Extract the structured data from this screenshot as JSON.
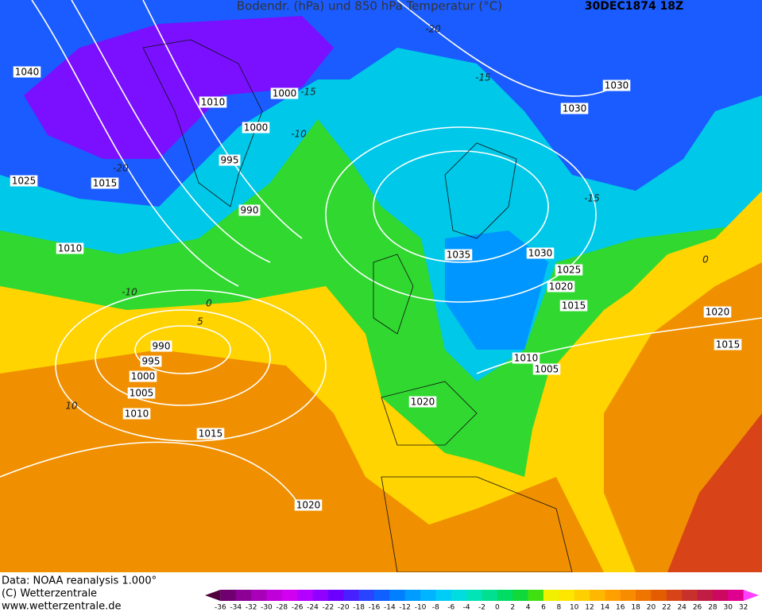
{
  "header": {
    "title": "Bodendr. (hPa)  und  850 hPa Temperatur (°C)",
    "date": "30DEC1874 18Z"
  },
  "isobar_labels": [
    "1040",
    "1010",
    "1000",
    "1000",
    "995",
    "1025",
    "1015",
    "990",
    "1010",
    "1035",
    "1030",
    "1025",
    "1020",
    "1015",
    "1020",
    "1015",
    "990",
    "995",
    "1000",
    "1005",
    "1010",
    "1010",
    "1005",
    "1020",
    "1015",
    "1020",
    "1030",
    "1030"
  ],
  "isotherm_labels": [
    "-20",
    "-15",
    "-15",
    "-10",
    "-20",
    "-15",
    "-10",
    "0",
    "5",
    "10",
    "0"
  ],
  "footer": {
    "lines": [
      "Data: NOAA reanalysis 1.000°",
      "(C) Wetterzentrale",
      "www.wetterzentrale.de"
    ]
  },
  "colorbar": {
    "ticks": [
      -36,
      -34,
      -32,
      -30,
      -28,
      -26,
      -24,
      -22,
      -20,
      -18,
      -16,
      -14,
      -12,
      -10,
      -8,
      -6,
      -4,
      -2,
      0,
      2,
      4,
      6,
      8,
      10,
      12,
      14,
      16,
      18,
      20,
      22,
      24,
      26,
      28,
      30,
      32
    ],
    "colors": [
      "#50003c",
      "#700070",
      "#8c0096",
      "#a800b8",
      "#c000d8",
      "#d200f0",
      "#b400ff",
      "#9000ff",
      "#6c00ff",
      "#4820ff",
      "#2844ff",
      "#1060ff",
      "#0080ff",
      "#009cff",
      "#00b4ff",
      "#00ccf8",
      "#00dce0",
      "#00e4b8",
      "#00e090",
      "#00dc64",
      "#10d838",
      "#40e010",
      "#f0f000",
      "#ffe600",
      "#ffd000",
      "#ffb800",
      "#ffa000",
      "#f88c00",
      "#f07400",
      "#e45c00",
      "#d84418",
      "#c8302c",
      "#c01c44",
      "#cc0860",
      "#e00090",
      "#ff40ff"
    ]
  }
}
